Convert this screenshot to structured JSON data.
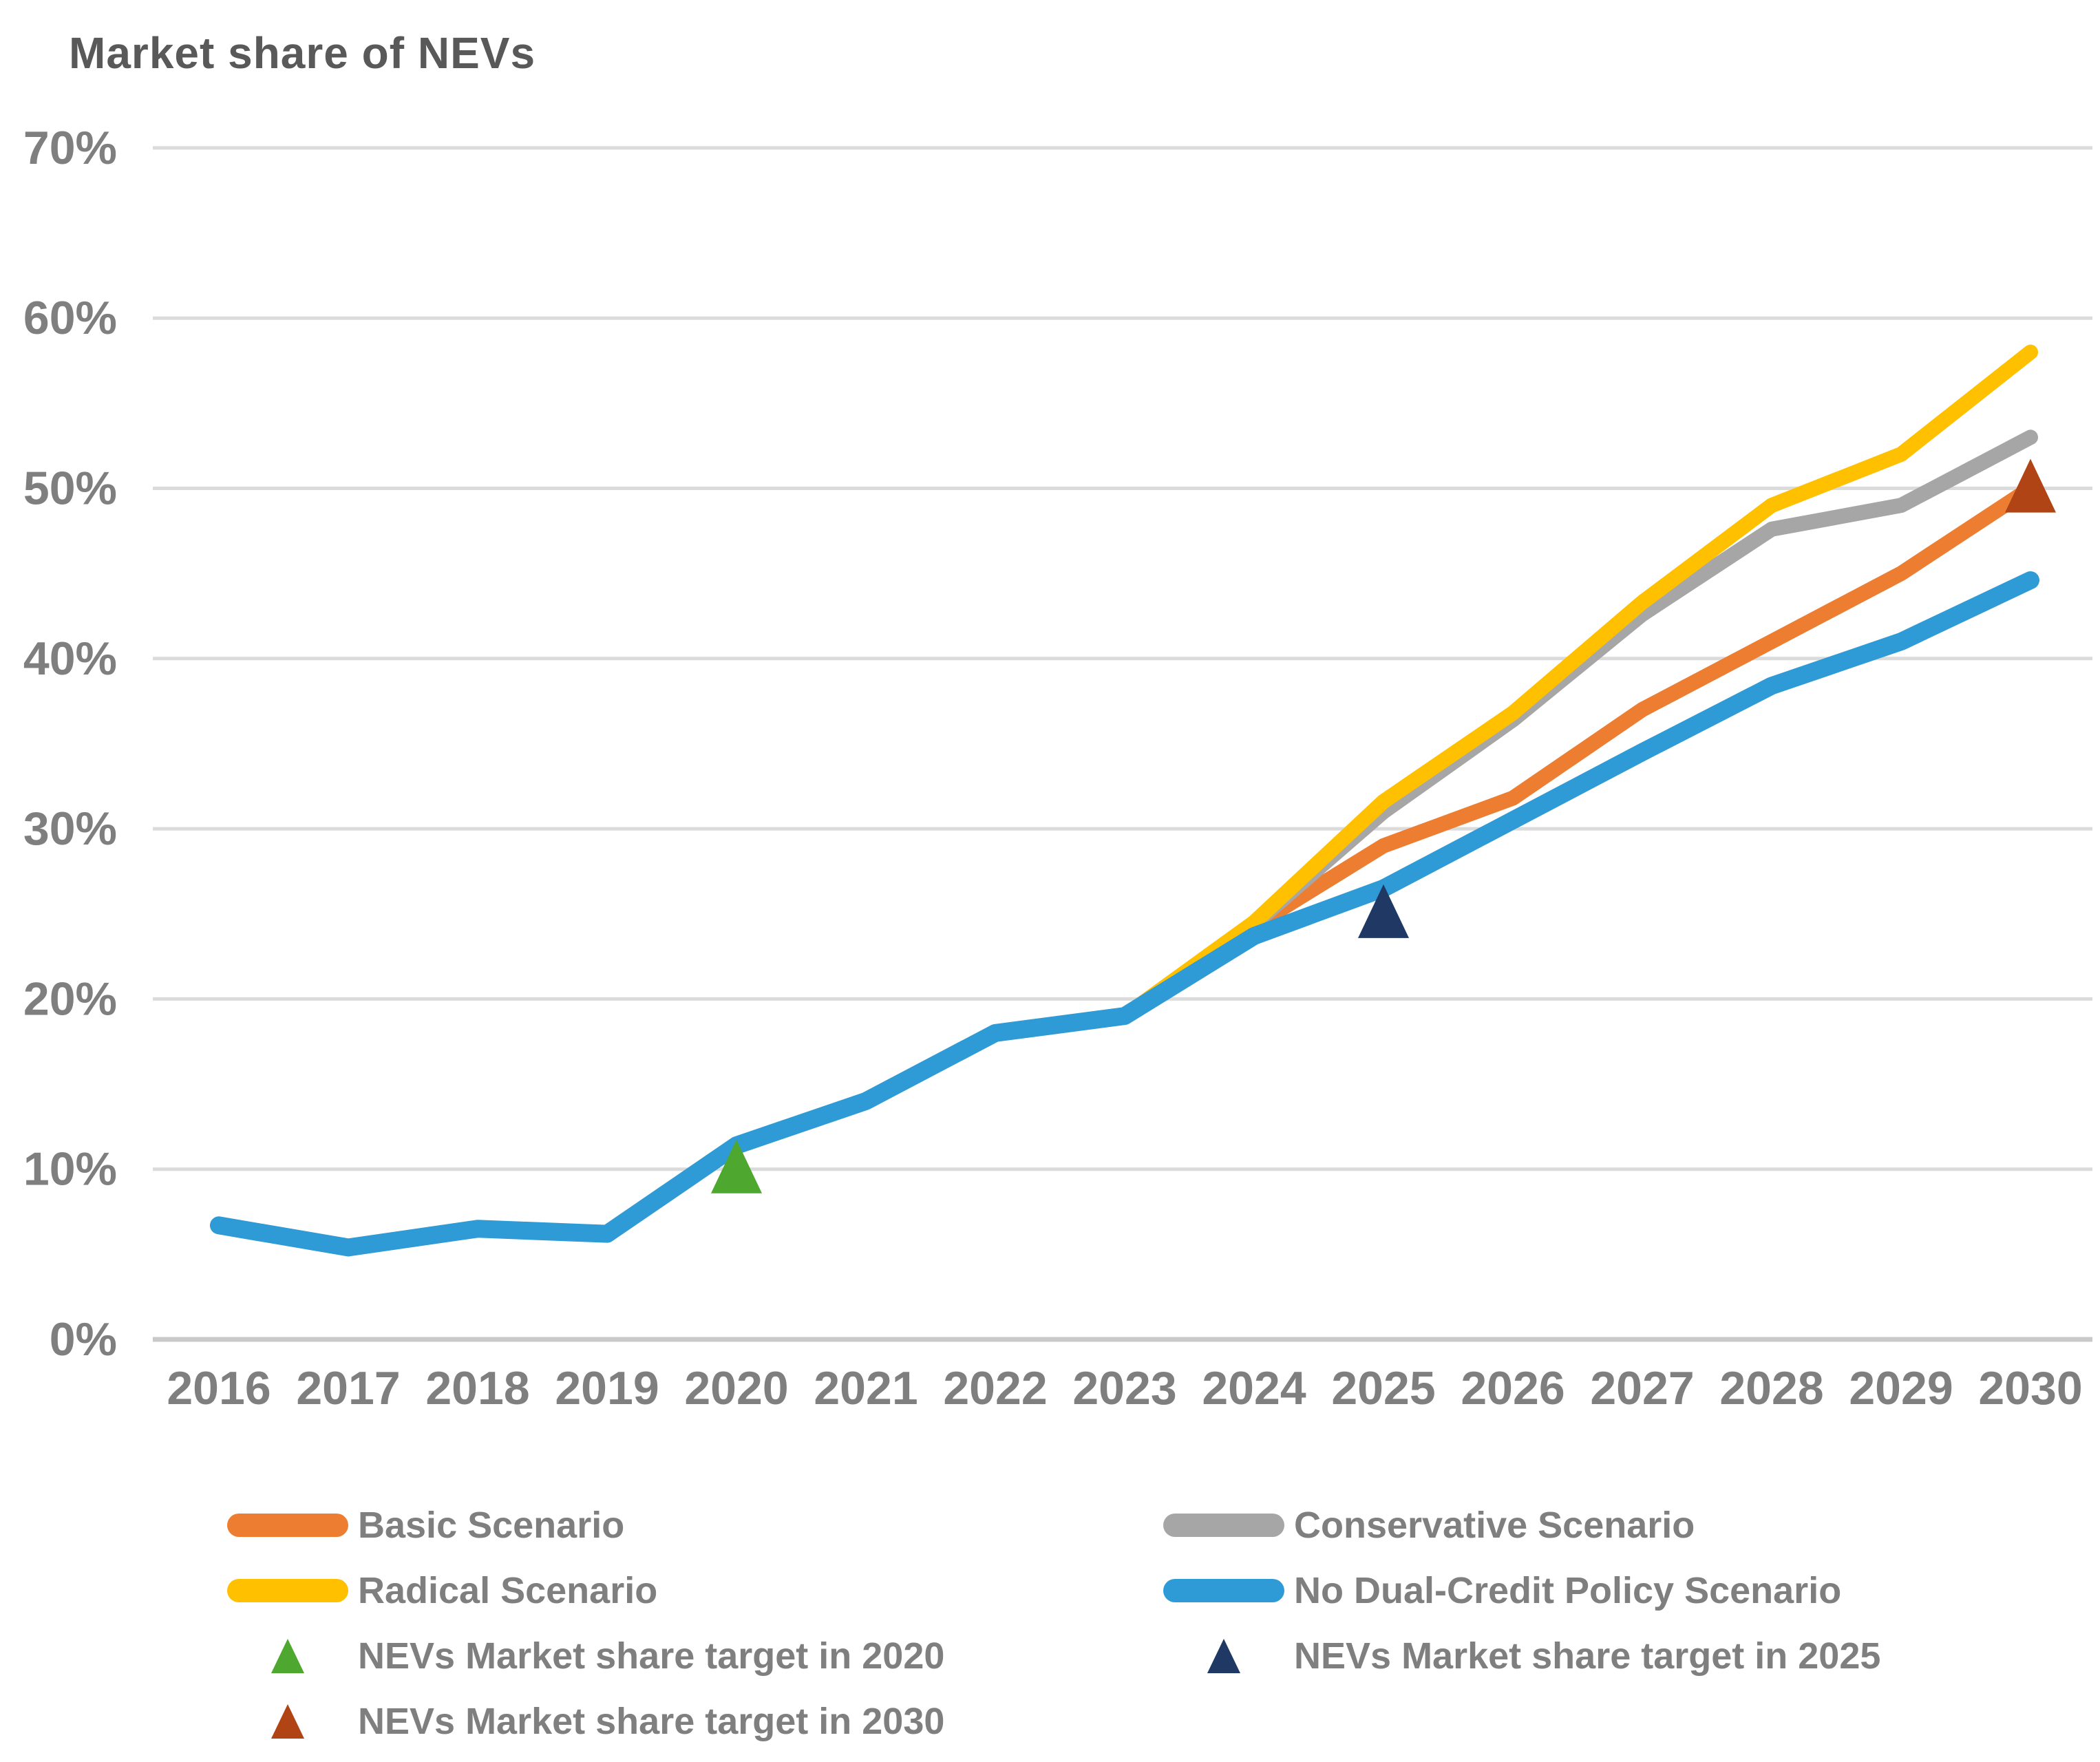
{
  "chart_data": {
    "type": "line",
    "title": "Market share of NEVs",
    "x": [
      2016,
      2017,
      2018,
      2019,
      2020,
      2021,
      2022,
      2023,
      2024,
      2025,
      2026,
      2027,
      2028,
      2029,
      2030
    ],
    "ylim": [
      0,
      70
    ],
    "ytick_labels": [
      "0%",
      "10%",
      "20%",
      "30%",
      "40%",
      "50%",
      "60%",
      "70%"
    ],
    "grid": true,
    "legend_position": "bottom",
    "series": [
      {
        "name": "Basic Scenario",
        "color": "#ED7D31",
        "values": [
          6.7,
          5.4,
          6.5,
          6.2,
          11.4,
          14,
          18,
          19,
          24.3,
          29,
          31.8,
          37,
          41,
          45,
          50
        ]
      },
      {
        "name": "Conservative Scenario",
        "color": "#A6A6A6",
        "values": [
          6.7,
          5.4,
          6.5,
          6.2,
          11.4,
          14,
          18,
          19,
          24.4,
          31,
          36.4,
          42.6,
          47.6,
          49,
          53
        ]
      },
      {
        "name": "Radical Scenario",
        "color": "#FFC000",
        "values": [
          6.7,
          5.4,
          6.5,
          6.2,
          11.4,
          14,
          18,
          19,
          24.5,
          31.6,
          36.8,
          43.3,
          49,
          52,
          58
        ]
      },
      {
        "name": "No Dual-Credit Policy Scenario",
        "color": "#2E9AD6",
        "values": [
          6.7,
          5.4,
          6.5,
          6.2,
          11.4,
          14,
          18,
          19,
          23.7,
          26.5,
          30.5,
          34.5,
          38.4,
          41,
          44.6
        ]
      }
    ],
    "targets": [
      {
        "name": "NEVs Market share target in 2020",
        "x": 2020,
        "y": 10,
        "color": "#4EA72E"
      },
      {
        "name": "NEVs Market share target in 2025",
        "x": 2025,
        "y": 25,
        "color": "#1F3864"
      },
      {
        "name": "NEVs Market share target in 2030",
        "x": 2030,
        "y": 50,
        "color": "#B04414"
      }
    ],
    "legend": [
      {
        "label": "Basic Scenario",
        "marker": "line",
        "color": "#ED7D31"
      },
      {
        "label": "Conservative Scenario",
        "marker": "line",
        "color": "#A6A6A6"
      },
      {
        "label": "Radical Scenario",
        "marker": "line",
        "color": "#FFC000"
      },
      {
        "label": "No Dual-Credit Policy Scenario",
        "marker": "line",
        "color": "#2E9AD6"
      },
      {
        "label": "NEVs Market share target in 2020",
        "marker": "triangle",
        "color": "#4EA72E"
      },
      {
        "label": "NEVs Market share target in 2025",
        "marker": "triangle",
        "color": "#1F3864"
      },
      {
        "label": "NEVs Market share target in 2030",
        "marker": "triangle",
        "color": "#B04414"
      }
    ],
    "style": {
      "gridline_color": "#DBDBDB",
      "axis_line_color": "#C9C9C9",
      "tick_label_color": "#7F7F7F",
      "title_color": "#595959"
    }
  }
}
